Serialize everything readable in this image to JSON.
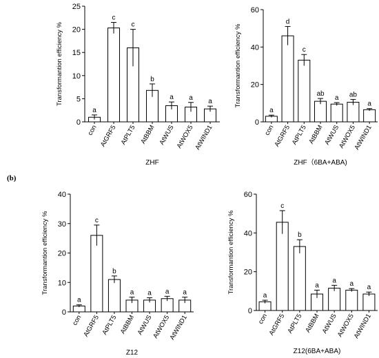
{
  "panel_label": "(b)",
  "chart_data": [
    {
      "type": "bar",
      "xlabel": "ZHF",
      "ylabel": "Transformantion efficiency %",
      "ylim": [
        0,
        25
      ],
      "yticks": [
        0,
        5,
        10,
        15,
        20,
        25
      ],
      "categories": [
        "con",
        "AtGRF5",
        "AtPLT5",
        "AtBBM",
        "AtWUS",
        "AtWOX5",
        "AtWIND1"
      ],
      "values": [
        1.0,
        20.3,
        16.0,
        6.8,
        3.5,
        3.2,
        2.8
      ],
      "errors": [
        0.5,
        1.2,
        4.0,
        1.4,
        0.8,
        1.0,
        0.6
      ],
      "significance": [
        "a",
        "c",
        "c",
        "b",
        "a",
        "a",
        "a"
      ]
    },
    {
      "type": "bar",
      "xlabel": "ZHF（6BA+ABA)",
      "ylabel": "Transformantion efficiency %",
      "ylim": [
        0,
        60
      ],
      "yticks": [
        0,
        20,
        40,
        60
      ],
      "categories": [
        "con",
        "AtGRF5",
        "AtPLT5",
        "AtBBM",
        "AtWUS",
        "AtWOX5",
        "AtWIND1"
      ],
      "values": [
        3.0,
        46.0,
        33.0,
        11.0,
        9.5,
        10.5,
        6.5
      ],
      "errors": [
        0.6,
        5.0,
        3.0,
        1.5,
        0.8,
        1.5,
        0.6
      ],
      "significance": [
        "a",
        "d",
        "c",
        "ab",
        "a",
        "ab",
        "a"
      ]
    },
    {
      "type": "bar",
      "xlabel": "Z12",
      "ylabel": "Transformantion efficiency %",
      "ylim": [
        0,
        40
      ],
      "yticks": [
        0,
        10,
        20,
        30,
        40
      ],
      "categories": [
        "con",
        "AtGRF5",
        "AtPLT5",
        "AtBBM",
        "AtWUS",
        "AtWOX5",
        "AtWIND1"
      ],
      "values": [
        2.0,
        26.0,
        11.0,
        4.0,
        4.0,
        4.5,
        4.0
      ],
      "errors": [
        0.4,
        3.5,
        1.2,
        1.0,
        0.8,
        0.8,
        1.0
      ],
      "significance": [
        "a",
        "c",
        "b",
        "a",
        "a",
        "a",
        "a"
      ]
    },
    {
      "type": "bar",
      "xlabel": "Z12(6BA+ABA)",
      "ylabel": "Transformantion efficiency %",
      "ylim": [
        0,
        60
      ],
      "yticks": [
        0,
        20,
        40,
        60
      ],
      "categories": [
        "con",
        "AtGRF5",
        "AtPLT5",
        "AtBBM",
        "AtWUS",
        "AtWOX5",
        "AtWIND1"
      ],
      "values": [
        4.5,
        45.5,
        33.0,
        8.5,
        11.5,
        10.5,
        8.5
      ],
      "errors": [
        0.8,
        6.0,
        3.5,
        2.0,
        1.5,
        0.8,
        1.0
      ],
      "significance": [
        "a",
        "c",
        "b",
        "a",
        "a",
        "a",
        "a"
      ]
    }
  ]
}
